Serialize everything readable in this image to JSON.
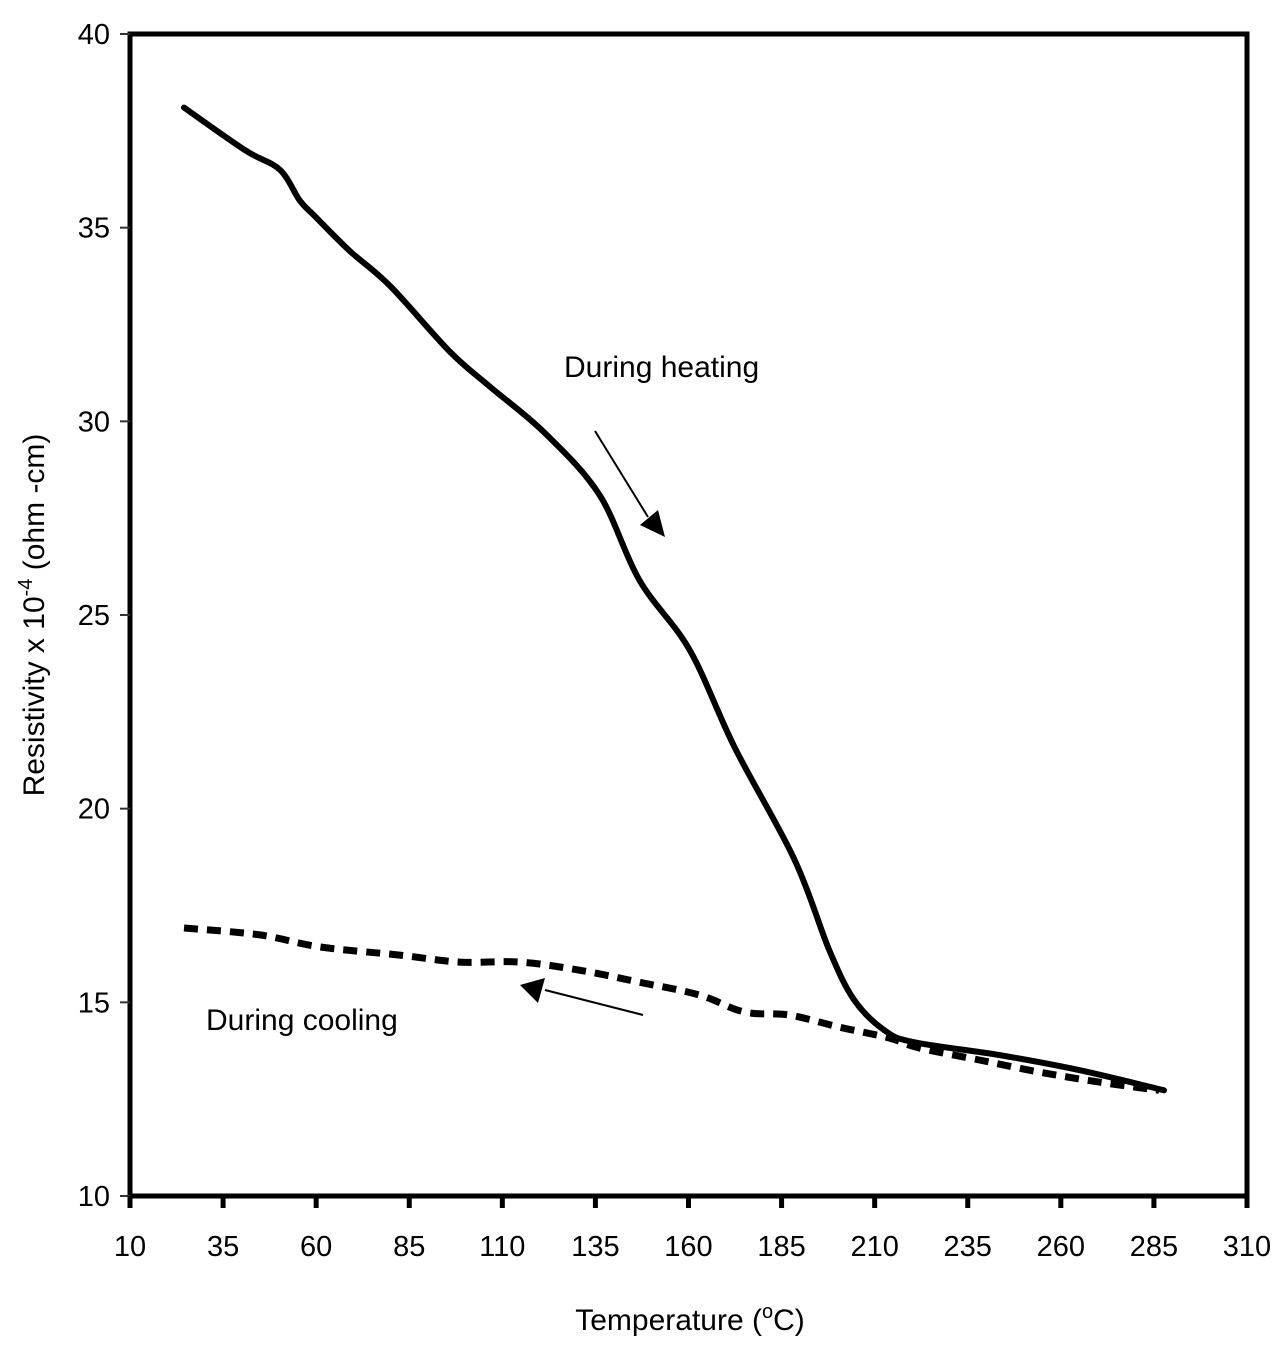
{
  "chart_data": {
    "type": "line",
    "title": "",
    "xlabel": "Temperature (°C)",
    "xlabel_parts": {
      "main": "Temperature (",
      "sup": "o",
      "tail": "C)"
    },
    "ylabel": "Resistivity x 10^-4 (ohm -cm)",
    "ylabel_parts": {
      "main": "Resistivity x 10",
      "sup": "-4",
      "tail": " (ohm -cm)"
    },
    "xlim": [
      10,
      310
    ],
    "ylim": [
      10,
      40
    ],
    "xticks": [
      10,
      35,
      60,
      85,
      110,
      135,
      160,
      185,
      210,
      235,
      260,
      285,
      310
    ],
    "yticks": [
      10,
      15,
      20,
      25,
      30,
      35,
      40
    ],
    "grid": false,
    "legend": null,
    "series": [
      {
        "name": "During heating",
        "style": "solid",
        "x": [
          24.5,
          40.9,
          50.2,
          55.6,
          59.6,
          69.0,
          79.8,
          95.9,
          106.6,
          121.4,
          136.1,
          146.8,
          160.3,
          172.3,
          188.4,
          197.8,
          204.5,
          212.6,
          220.6,
          243.4,
          264.9,
          287.7
        ],
        "y": [
          38.1,
          37.0,
          36.5,
          35.7,
          35.3,
          34.4,
          33.5,
          31.8,
          30.9,
          29.7,
          28.1,
          25.9,
          24.1,
          21.6,
          18.7,
          16.35,
          15.06,
          14.28,
          13.97,
          13.64,
          13.25,
          12.73
        ]
      },
      {
        "name": "During cooling",
        "style": "dashed",
        "x": [
          24.5,
          44.9,
          61.0,
          82.4,
          98.5,
          114.6,
          130.7,
          146.8,
          162.9,
          175.0,
          187.1,
          200.5,
          213.9,
          222.0,
          238.1,
          254.2,
          270.3,
          286.4
        ],
        "y": [
          16.92,
          16.74,
          16.43,
          16.22,
          16.04,
          16.04,
          15.83,
          15.52,
          15.19,
          14.75,
          14.67,
          14.36,
          14.08,
          13.82,
          13.51,
          13.2,
          12.94,
          12.73
        ]
      }
    ],
    "annotations": [
      {
        "text": "During heating",
        "arrow": "down-right"
      },
      {
        "text": "During cooling",
        "arrow": "left"
      }
    ]
  },
  "colors": {
    "line": "#000000",
    "background": "#ffffff"
  }
}
